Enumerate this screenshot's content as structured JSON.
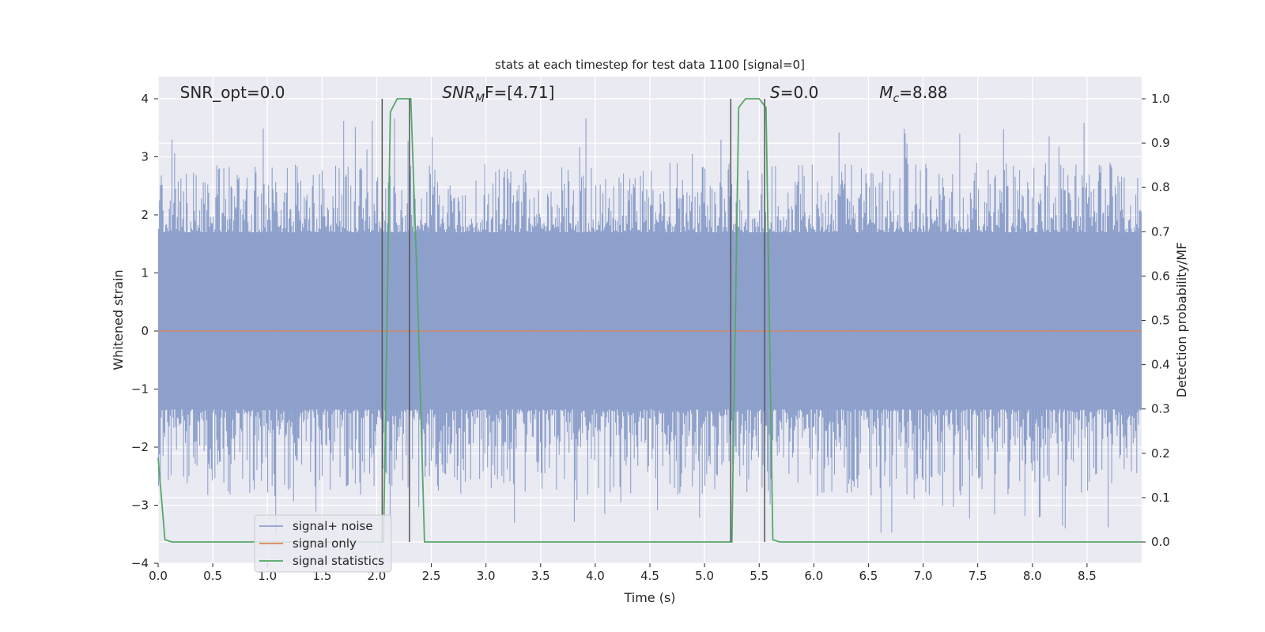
{
  "chart_data": {
    "type": "line",
    "title": "stats at each timestep for test data 1100 [signal=0]",
    "xlabel": "Time (s)",
    "ylabel": "Whitened strain",
    "y2label": "Detection probability/MF",
    "xlim": [
      0.0,
      9.0
    ],
    "ylim": [
      -4,
      4
    ],
    "y2lim": [
      0.0,
      1.0
    ],
    "xticks": [
      0.0,
      0.5,
      1.0,
      1.5,
      2.0,
      2.5,
      3.0,
      3.5,
      4.0,
      4.5,
      5.0,
      5.5,
      6.0,
      6.5,
      7.0,
      7.5,
      8.0,
      8.5
    ],
    "xtick_labels": [
      "0.0",
      "0.5",
      "1.0",
      "1.5",
      "2.0",
      "2.5",
      "3.0",
      "3.5",
      "4.0",
      "4.5",
      "5.0",
      "5.5",
      "6.0",
      "6.5",
      "7.0",
      "7.5",
      "8.0",
      "8.5"
    ],
    "yticks": [
      4,
      3,
      2,
      1,
      0,
      -1,
      -2,
      -3,
      -4
    ],
    "ytick_labels": [
      "4",
      "3",
      "2",
      "1",
      "0",
      "−1",
      "−2",
      "−3",
      "−4"
    ],
    "y2ticks": [
      1.0,
      0.9,
      0.8,
      0.7,
      0.6,
      0.5,
      0.4,
      0.3,
      0.2,
      0.1,
      0.0
    ],
    "y2tick_labels": [
      "1.0",
      "0.9",
      "0.8",
      "0.7",
      "0.6",
      "0.5",
      "0.4",
      "0.3",
      "0.2",
      "0.1",
      "0.0"
    ],
    "grid": true,
    "legend_position": "lower-left",
    "background_color": "#eaeaf2",
    "annotations": [
      {
        "text": "SNR_opt=0.0",
        "x": 0.2
      },
      {
        "text": "SNR_MF=[4.71]",
        "main": "SNR",
        "sub": "M",
        "tail": "F=[4.71]",
        "x": 2.6
      },
      {
        "text": "S=0.0",
        "main": "S",
        "tail": "=0.0",
        "x": 5.6
      },
      {
        "text": "M_c=8.88",
        "main": "M",
        "sub": "c",
        "tail": "=8.88",
        "x": 6.6
      }
    ],
    "series": [
      {
        "name": "signal+ noise",
        "color": "#8da0cb",
        "axis": "left",
        "noise_envelope": {
          "core_low": -1.35,
          "core_high": 1.7,
          "typical_peak": 2.3,
          "max": 4.0,
          "min": -3.65
        }
      },
      {
        "name": "signal only",
        "color": "#dd8452",
        "axis": "left",
        "x": [
          0.0,
          9.0
        ],
        "y": [
          0.0,
          0.0
        ]
      },
      {
        "name": "signal statistics",
        "color": "#55a868",
        "axis": "right",
        "x": [
          0.0,
          0.0625,
          0.125,
          2.0625,
          2.125,
          2.1875,
          2.3125,
          2.375,
          2.4375,
          5.25,
          5.3125,
          5.375,
          5.5,
          5.5625,
          5.625,
          5.6875,
          9.0
        ],
        "y": [
          0.19,
          0.005,
          0.0,
          0.0,
          0.97,
          1.0,
          1.0,
          0.55,
          0.0,
          0.0,
          0.98,
          1.0,
          1.0,
          0.98,
          0.005,
          0.0,
          0.0
        ]
      }
    ],
    "vertical_lines": [
      {
        "x": 2.05,
        "ymin": 0.0,
        "ymax": 1.0,
        "color": "#555555"
      },
      {
        "x": 2.3,
        "ymin": 0.0,
        "ymax": 1.0,
        "color": "#555555"
      },
      {
        "x": 5.24,
        "ymin": 0.0,
        "ymax": 1.0,
        "color": "#555555"
      },
      {
        "x": 5.55,
        "ymin": 0.0,
        "ymax": 1.0,
        "color": "#555555"
      }
    ]
  }
}
